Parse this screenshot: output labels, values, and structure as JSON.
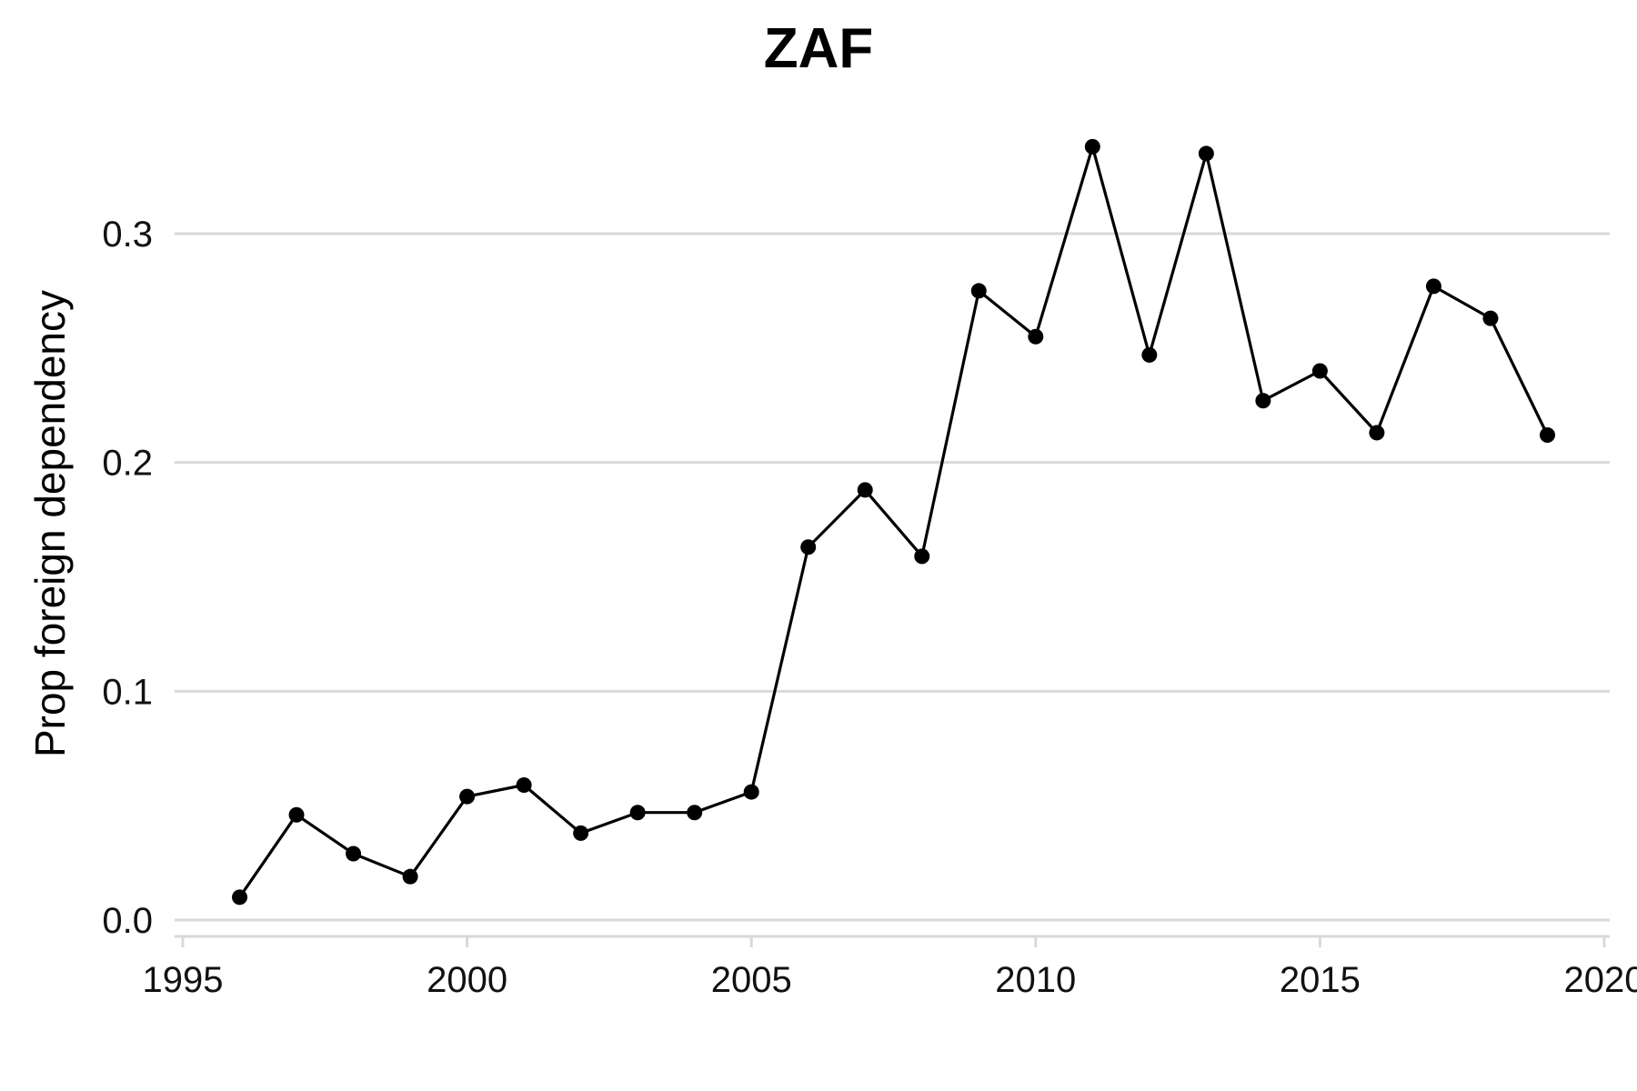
{
  "chart_data": {
    "type": "line",
    "title": "ZAF",
    "xlabel": "",
    "ylabel": "Prop foreign dependency",
    "xlim": [
      1995,
      2020
    ],
    "ylim": [
      0.0,
      0.35
    ],
    "x_ticks": [
      1995,
      2000,
      2005,
      2010,
      2015,
      2020
    ],
    "y_ticks": [
      "0.0",
      "0.1",
      "0.2",
      "0.3"
    ],
    "grid": "horizontal",
    "legend": "none",
    "line_color": "#000000",
    "grid_color": "#d9d9d9",
    "series": [
      {
        "x": [
          1996,
          1997,
          1998,
          1999,
          2000,
          2001,
          2002,
          2003,
          2004,
          2005,
          2006,
          2007,
          2008,
          2009,
          2010,
          2011,
          2012,
          2013,
          2014,
          2015,
          2016,
          2017,
          2018,
          2019
        ],
        "values": [
          0.01,
          0.046,
          0.029,
          0.019,
          0.054,
          0.059,
          0.038,
          0.047,
          0.047,
          0.056,
          0.163,
          0.188,
          0.159,
          0.275,
          0.255,
          0.338,
          0.247,
          0.335,
          0.227,
          0.24,
          0.213,
          0.277,
          0.263,
          0.212
        ]
      }
    ]
  }
}
